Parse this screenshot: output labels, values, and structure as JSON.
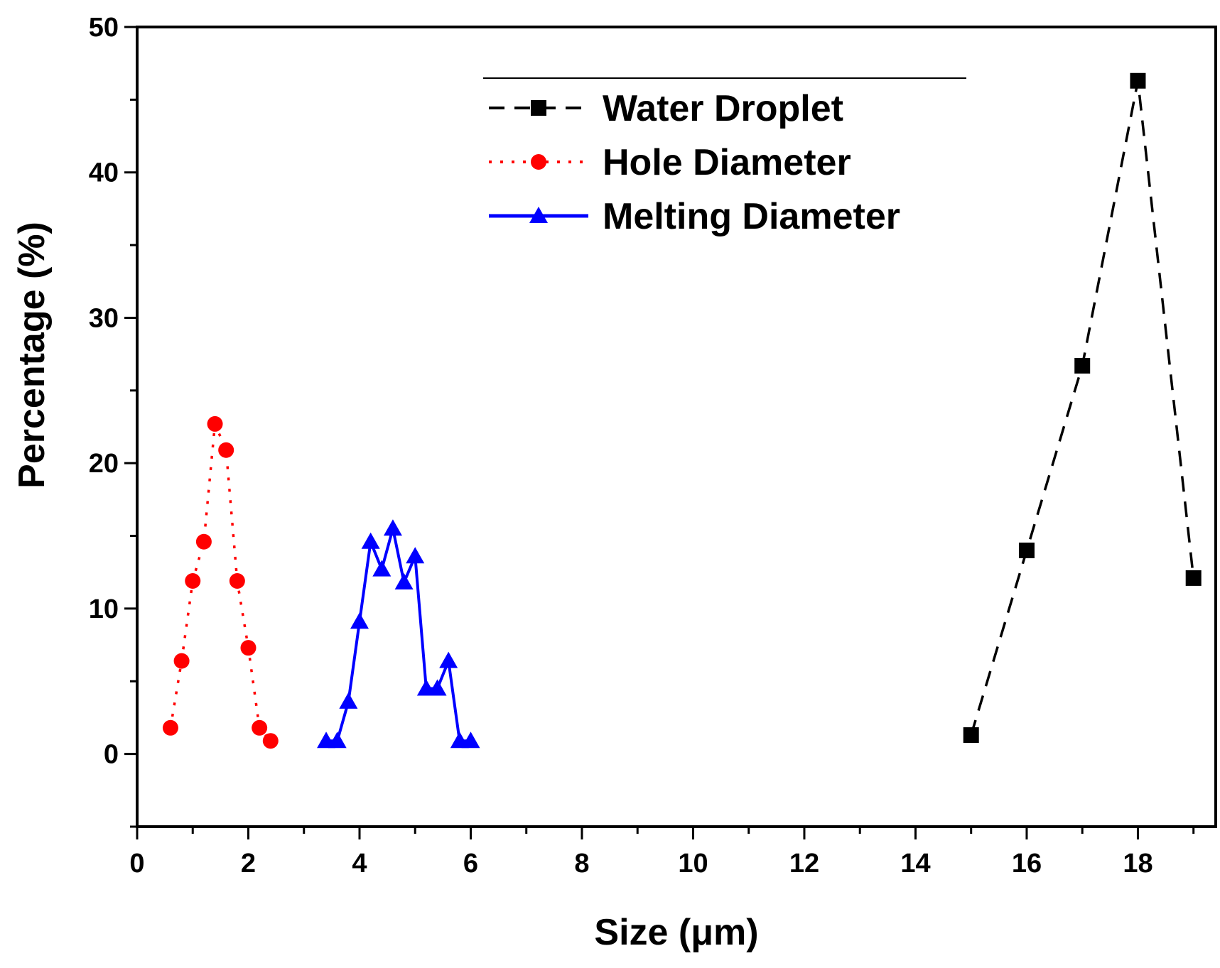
{
  "chart_data": {
    "type": "line",
    "title": "",
    "xlabel": "Size (μm)",
    "ylabel": "Percentage (%)",
    "xlim": [
      0,
      19.4
    ],
    "ylim": [
      -5,
      50
    ],
    "xticks": [
      0,
      2,
      4,
      6,
      8,
      10,
      12,
      14,
      16,
      18
    ],
    "yticks": [
      0,
      10,
      20,
      30,
      40,
      50
    ],
    "xtick_labels": [
      "0",
      "2",
      "4",
      "6",
      "8",
      "10",
      "12",
      "14",
      "16",
      "18"
    ],
    "ytick_labels": [
      "0",
      "10",
      "20",
      "30",
      "40",
      "50"
    ],
    "grid": false,
    "legend_position": "top-center",
    "series": [
      {
        "name": "Water Droplet",
        "color": "#000000",
        "line_style": "dashed",
        "marker": "square",
        "x": [
          15,
          16,
          17,
          18,
          19
        ],
        "y": [
          1.3,
          14.0,
          26.7,
          46.3,
          12.1
        ]
      },
      {
        "name": "Hole Diameter",
        "color": "#ff0000",
        "line_style": "dotted",
        "marker": "circle",
        "x": [
          0.6,
          0.8,
          1.0,
          1.2,
          1.4,
          1.6,
          1.8,
          2.0,
          2.2,
          2.4
        ],
        "y": [
          1.8,
          6.4,
          11.9,
          14.6,
          22.7,
          20.9,
          11.9,
          7.3,
          1.8,
          0.9
        ]
      },
      {
        "name": "Melting Diameter",
        "color": "#0000ff",
        "line_style": "solid",
        "marker": "triangle",
        "x": [
          3.4,
          3.6,
          3.8,
          4.0,
          4.2,
          4.4,
          4.6,
          4.8,
          5.0,
          5.2,
          5.4,
          5.6,
          5.8,
          6.0
        ],
        "y": [
          0.9,
          0.9,
          3.6,
          9.1,
          14.6,
          12.7,
          15.5,
          11.8,
          13.6,
          4.5,
          4.5,
          6.4,
          0.9,
          0.9
        ]
      }
    ]
  }
}
